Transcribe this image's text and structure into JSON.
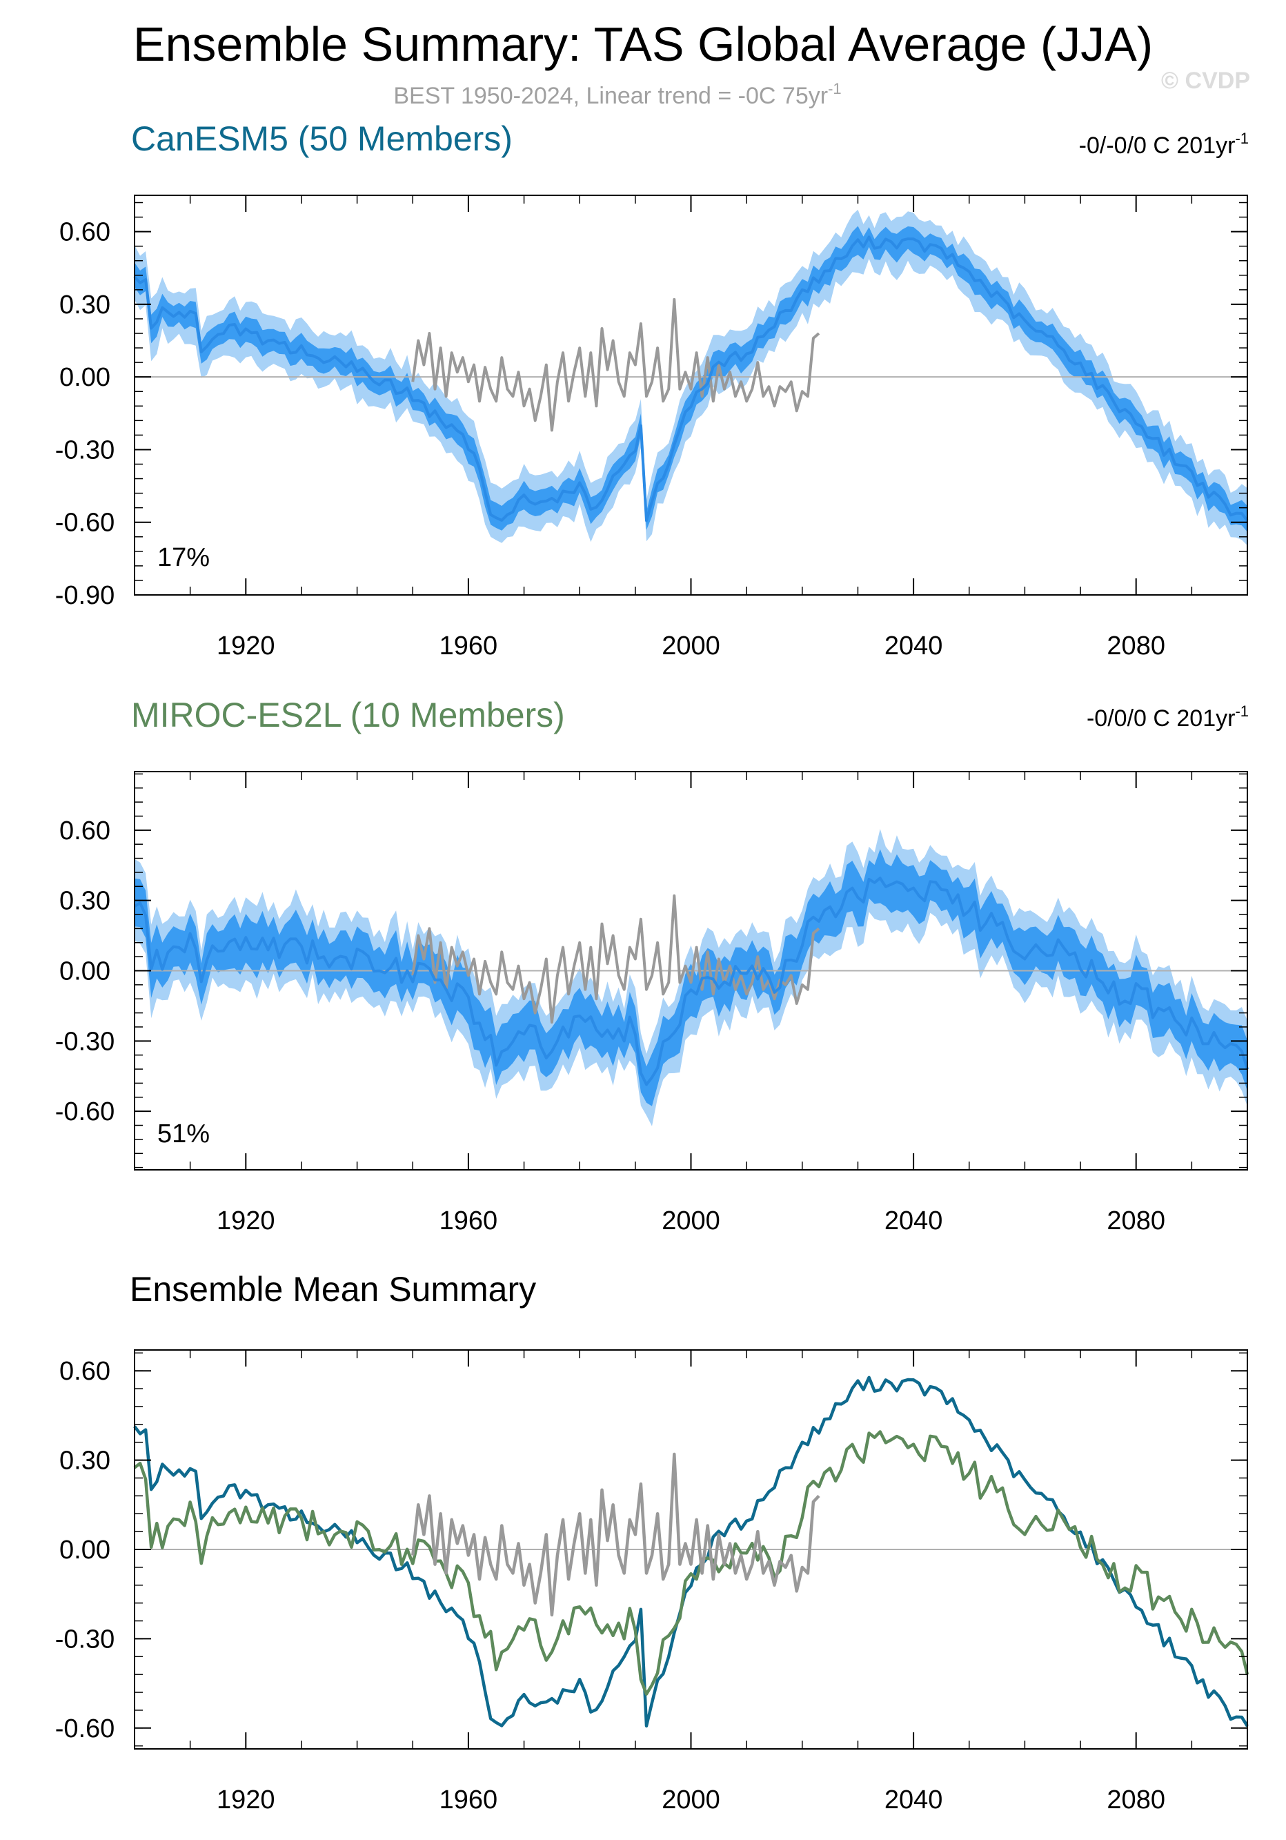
{
  "header": {
    "title": "Ensemble Summary: TAS Global Average (JJA)",
    "subtitle": "BEST 1950-2024, Linear trend = -0C 75yr",
    "subtitle_sup": "-1",
    "copyright": "© CVDP"
  },
  "colors": {
    "canesm5": "#0e6a8e",
    "miroc": "#5d8a5b",
    "observations": "#999999",
    "range_outer": "#a8d2f7",
    "range_inner": "#3a9cf2",
    "ensemble_mean": "#2b8be6",
    "zero_line": "#b0b0b0"
  },
  "panels": [
    {
      "title": "CanESM5 (50 Members)",
      "trend_text": "-0/-0/0 C 201yr",
      "trend_sup": "-1",
      "percent": "17%"
    },
    {
      "title": "MIROC-ES2L (10 Members)",
      "trend_text": "-0/0/0 C 201yr",
      "trend_sup": "-1",
      "percent": "51%"
    },
    {
      "title": "Ensemble Mean Summary"
    }
  ],
  "chart_data": [
    {
      "type": "area",
      "title": "CanESM5 (50 Members)",
      "xlim": [
        1900,
        2100
      ],
      "ylim": [
        -0.9,
        0.75
      ],
      "yticks": [
        "0.60",
        "0.30",
        "0.00",
        "-0.30",
        "-0.60",
        "-0.90"
      ],
      "xticks": [
        "1920",
        "1960",
        "2000",
        "2040",
        "2080"
      ],
      "mean_anchors": [
        [
          1900,
          0.43
        ],
        [
          1902,
          0.38
        ],
        [
          1903,
          0.18
        ],
        [
          1905,
          0.27
        ],
        [
          1908,
          0.27
        ],
        [
          1911,
          0.24
        ],
        [
          1912,
          0.1
        ],
        [
          1915,
          0.2
        ],
        [
          1920,
          0.19
        ],
        [
          1925,
          0.13
        ],
        [
          1930,
          0.11
        ],
        [
          1935,
          0.07
        ],
        [
          1940,
          0.03
        ],
        [
          1945,
          -0.02
        ],
        [
          1950,
          -0.08
        ],
        [
          1955,
          -0.18
        ],
        [
          1960,
          -0.28
        ],
        [
          1962,
          -0.38
        ],
        [
          1964,
          -0.55
        ],
        [
          1966,
          -0.57
        ],
        [
          1970,
          -0.5
        ],
        [
          1975,
          -0.52
        ],
        [
          1980,
          -0.45
        ],
        [
          1983,
          -0.56
        ],
        [
          1985,
          -0.45
        ],
        [
          1990,
          -0.3
        ],
        [
          1991,
          -0.18
        ],
        [
          1992,
          -0.58
        ],
        [
          1995,
          -0.4
        ],
        [
          2000,
          -0.1
        ],
        [
          2005,
          0.05
        ],
        [
          2010,
          0.1
        ],
        [
          2015,
          0.22
        ],
        [
          2020,
          0.35
        ],
        [
          2025,
          0.45
        ],
        [
          2030,
          0.55
        ],
        [
          2035,
          0.56
        ],
        [
          2040,
          0.55
        ],
        [
          2045,
          0.52
        ],
        [
          2050,
          0.43
        ],
        [
          2055,
          0.33
        ],
        [
          2060,
          0.22
        ],
        [
          2065,
          0.15
        ],
        [
          2070,
          0.05
        ],
        [
          2075,
          -0.08
        ],
        [
          2080,
          -0.18
        ],
        [
          2085,
          -0.3
        ],
        [
          2090,
          -0.4
        ],
        [
          2095,
          -0.52
        ],
        [
          2100,
          -0.6
        ]
      ],
      "mean_noise": 0.025,
      "inner_halfwidth": 0.05,
      "outer_halfwidth": 0.11,
      "mean_series_name": "CanESM5"
    },
    {
      "type": "area",
      "title": "MIROC-ES2L (10 Members)",
      "xlim": [
        1900,
        2100
      ],
      "ylim": [
        -0.85,
        0.85
      ],
      "yticks": [
        "0.60",
        "0.30",
        "0.00",
        "-0.30",
        "-0.60"
      ],
      "xticks": [
        "1920",
        "1960",
        "2000",
        "2040",
        "2080"
      ],
      "mean_anchors": [
        [
          1900,
          0.26
        ],
        [
          1902,
          0.25
        ],
        [
          1903,
          0.02
        ],
        [
          1906,
          0.08
        ],
        [
          1910,
          0.12
        ],
        [
          1912,
          -0.02
        ],
        [
          1915,
          0.12
        ],
        [
          1920,
          0.1
        ],
        [
          1925,
          0.12
        ],
        [
          1930,
          0.1
        ],
        [
          1935,
          0.05
        ],
        [
          1940,
          0.05
        ],
        [
          1945,
          0.03
        ],
        [
          1950,
          -0.02
        ],
        [
          1955,
          -0.05
        ],
        [
          1960,
          -0.1
        ],
        [
          1963,
          -0.3
        ],
        [
          1966,
          -0.38
        ],
        [
          1970,
          -0.25
        ],
        [
          1975,
          -0.33
        ],
        [
          1980,
          -0.2
        ],
        [
          1985,
          -0.28
        ],
        [
          1990,
          -0.24
        ],
        [
          1992,
          -0.54
        ],
        [
          1995,
          -0.3
        ],
        [
          2000,
          -0.1
        ],
        [
          2005,
          -0.02
        ],
        [
          2010,
          0.0
        ],
        [
          2015,
          -0.05
        ],
        [
          2020,
          0.05
        ],
        [
          2022,
          0.28
        ],
        [
          2025,
          0.25
        ],
        [
          2030,
          0.33
        ],
        [
          2035,
          0.38
        ],
        [
          2040,
          0.36
        ],
        [
          2045,
          0.34
        ],
        [
          2050,
          0.25
        ],
        [
          2055,
          0.2
        ],
        [
          2060,
          0.1
        ],
        [
          2065,
          0.08
        ],
        [
          2070,
          0.05
        ],
        [
          2075,
          -0.08
        ],
        [
          2080,
          -0.1
        ],
        [
          2085,
          -0.18
        ],
        [
          2090,
          -0.25
        ],
        [
          2095,
          -0.3
        ],
        [
          2100,
          -0.4
        ]
      ],
      "mean_noise": 0.06,
      "inner_halfwidth": 0.1,
      "outer_halfwidth": 0.17,
      "mean_series_name": "MIROC-ES2L"
    },
    {
      "type": "line",
      "title": "Ensemble Mean Summary",
      "xlim": [
        1900,
        2100
      ],
      "ylim": [
        -0.67,
        0.67
      ],
      "yticks": [
        "0.60",
        "0.30",
        "0.00",
        "-0.30",
        "-0.60"
      ],
      "xticks": [
        "1920",
        "1960",
        "2000",
        "2040",
        "2080"
      ],
      "series_refs": [
        "CanESM5",
        "MIROC-ES2L",
        "BEST"
      ]
    }
  ],
  "observations": {
    "name": "BEST",
    "x_start": 1950,
    "values": [
      -0.02,
      0.15,
      0.05,
      0.18,
      -0.05,
      0.12,
      -0.08,
      0.1,
      0.02,
      0.08,
      -0.02,
      0.05,
      -0.1,
      0.04,
      -0.05,
      -0.1,
      0.08,
      -0.05,
      -0.08,
      0.02,
      -0.12,
      -0.05,
      -0.18,
      -0.08,
      0.05,
      -0.22,
      -0.02,
      0.1,
      -0.1,
      0.02,
      0.12,
      -0.08,
      0.1,
      -0.12,
      0.2,
      0.03,
      0.15,
      -0.02,
      -0.08,
      0.1,
      0.05,
      0.22,
      -0.08,
      -0.02,
      0.12,
      -0.1,
      -0.05,
      0.32,
      -0.05,
      0.02,
      -0.05,
      0.1,
      -0.08,
      0.08,
      -0.1,
      0.05,
      -0.05,
      0.02,
      -0.08,
      -0.02,
      -0.1,
      -0.05,
      0.06,
      -0.08,
      -0.04,
      -0.12,
      -0.04,
      -0.06,
      -0.02,
      -0.14,
      -0.06,
      -0.08,
      0.16,
      0.18
    ]
  }
}
